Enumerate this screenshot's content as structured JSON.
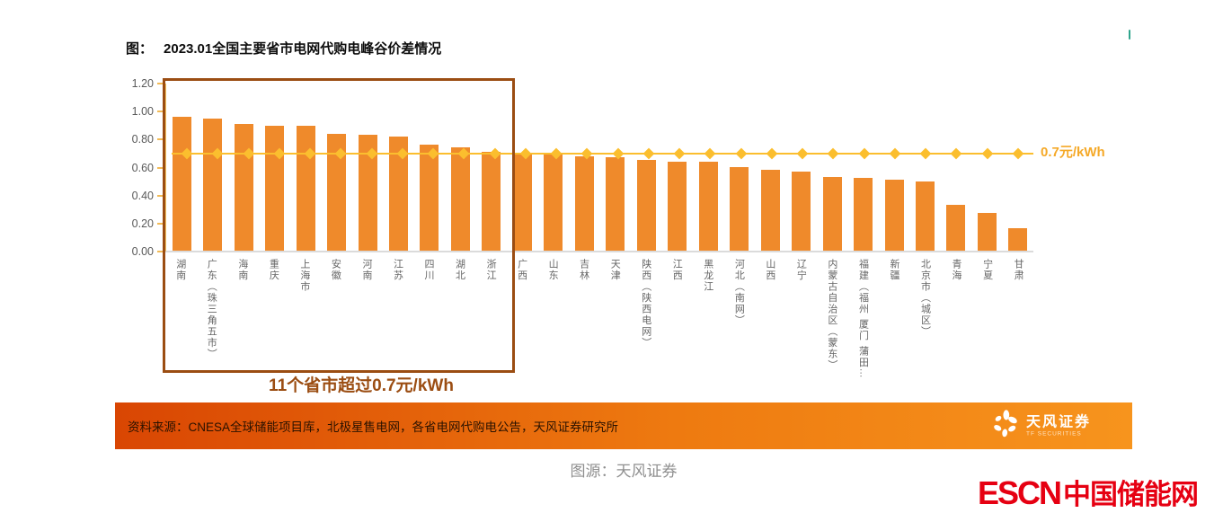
{
  "figure_label": "图：",
  "figure_title": "2023.01全国主要省市电网代购电峰谷价差情况",
  "chart_data": {
    "type": "bar",
    "title": "2023.01全国主要省市电网代购电峰谷价差情况",
    "categories": [
      "湖南",
      "广东（珠三角五市）",
      "海南",
      "重庆",
      "上海市",
      "安徽",
      "河南",
      "江苏",
      "四川",
      "湖北",
      "浙江",
      "广西",
      "山东",
      "吉林",
      "天津",
      "陕西（陕西电网）",
      "江西",
      "黑龙江",
      "河北（南网）",
      "山西",
      "辽宁",
      "内蒙古自治区（蒙东）",
      "福建（福州 厦门 蒲田…",
      "新疆",
      "北京市（城区）",
      "青海",
      "宁夏",
      "甘肃"
    ],
    "values": [
      0.96,
      0.95,
      0.91,
      0.9,
      0.9,
      0.84,
      0.83,
      0.82,
      0.76,
      0.74,
      0.71,
      0.7,
      0.69,
      0.68,
      0.67,
      0.65,
      0.64,
      0.64,
      0.6,
      0.58,
      0.57,
      0.53,
      0.52,
      0.51,
      0.5,
      0.33,
      0.27,
      0.16
    ],
    "ylim": [
      0,
      1.2
    ],
    "yticks": [
      "1.20",
      "1.00",
      "0.80",
      "0.60",
      "0.40",
      "0.20",
      "0.00"
    ],
    "grid": false,
    "legend": false,
    "reference_line": {
      "value": 0.7,
      "label": "0.7元/kWh"
    },
    "highlight": {
      "covers_first_n": 11,
      "label": "11个省市超过0.7元/kWh"
    },
    "bar_color": "#EF8A2B",
    "line_color": "#FBBE2E",
    "ref_label_color": "#F5A928",
    "box_color": "#9B4D12"
  },
  "annotation": {
    "text": "11个省市超过0.7元/kWh"
  },
  "footer": {
    "source_text": "资料来源：CNESA全球储能项目库，北极星售电网，各省电网代购电公告，天风证券研究所",
    "brand_name": "天风证券",
    "brand_subtitle": "TF SECURITIES"
  },
  "caption": "图源：天风证券",
  "bottom_logo": {
    "latin": "ESCN",
    "cjk": "中国储能网",
    "color": "#E60012"
  }
}
